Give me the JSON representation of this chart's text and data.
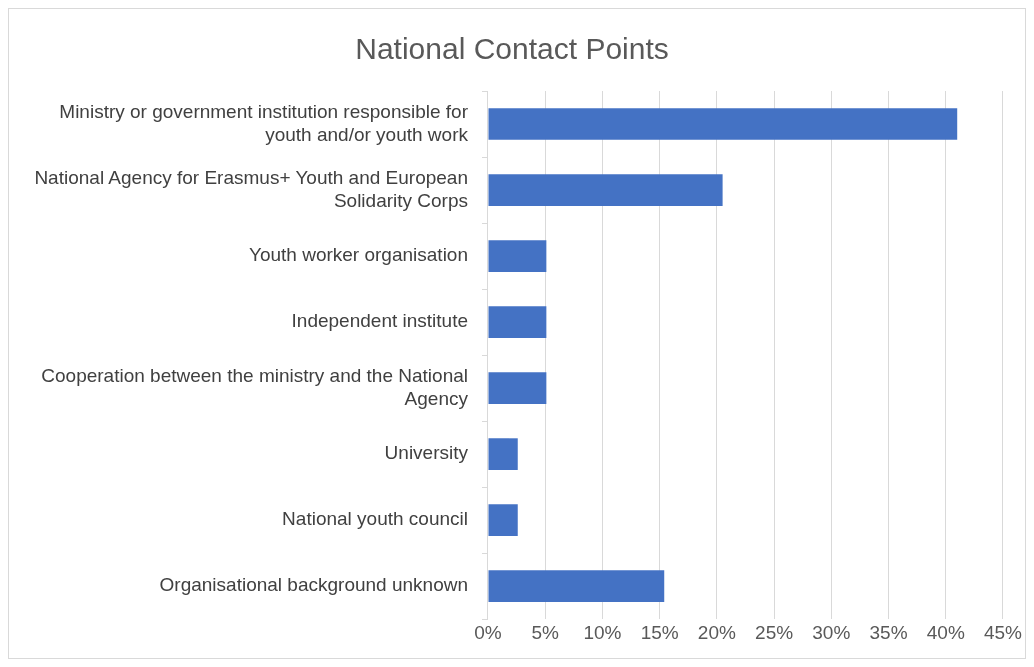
{
  "chart_data": {
    "type": "bar",
    "orientation": "horizontal",
    "title": "National Contact Points",
    "categories": [
      "Ministry or government institution responsible for youth and/or youth work",
      "National Agency for Erasmus+ Youth and European Solidarity Corps",
      "Youth worker organisation",
      "Independent institute",
      "Cooperation between the ministry and the National Agency",
      "University",
      "National youth council",
      "Organisational background unknown"
    ],
    "values": [
      41.0,
      20.5,
      5.1,
      5.1,
      5.1,
      2.6,
      2.6,
      15.4
    ],
    "color": "#4472c4",
    "xlim": [
      0,
      45
    ],
    "xticks": [
      {
        "value": 0,
        "label": "0%"
      },
      {
        "value": 5,
        "label": "5%"
      },
      {
        "value": 10,
        "label": "10%"
      },
      {
        "value": 15,
        "label": "15%"
      },
      {
        "value": 20,
        "label": "20%"
      },
      {
        "value": 25,
        "label": "25%"
      },
      {
        "value": 30,
        "label": "30%"
      },
      {
        "value": 35,
        "label": "35%"
      },
      {
        "value": 40,
        "label": "40%"
      },
      {
        "value": 45,
        "label": "45%"
      }
    ],
    "grid": "x",
    "legend": false
  }
}
